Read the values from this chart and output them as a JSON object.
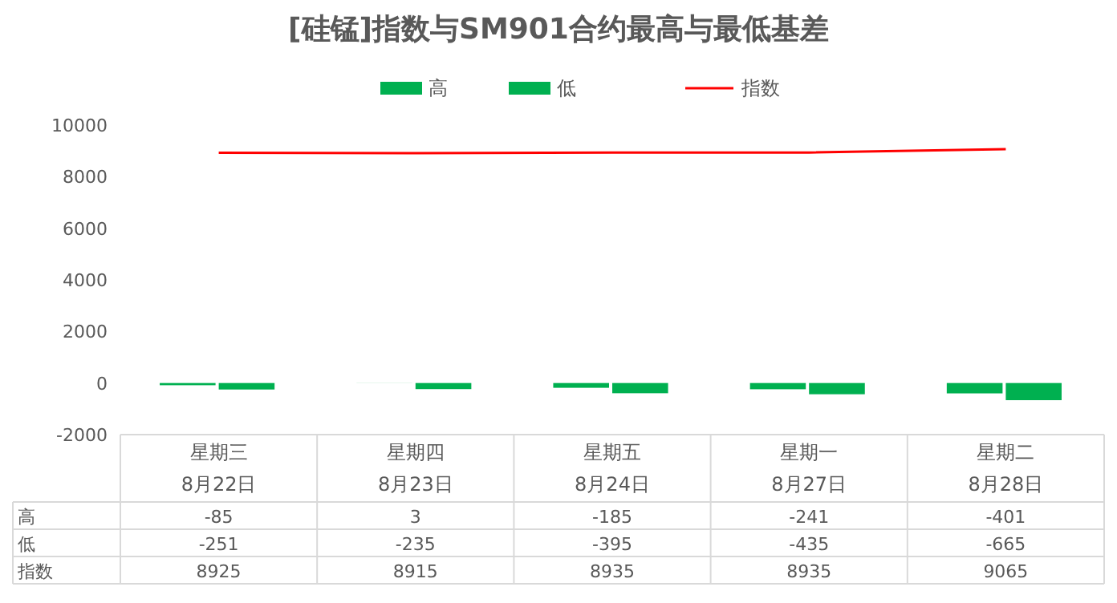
{
  "chart_data": {
    "type": "bar",
    "title": "[硅锰]指数与SM901合约最高与最低基差",
    "categories": [
      "星期三\n8月22日",
      "星期四\n8月23日",
      "星期五\n8月24日",
      "星期一\n8月27日",
      "星期二\n8月28日"
    ],
    "series": [
      {
        "name": "高",
        "color": "#00b050",
        "values": [
          -85,
          3,
          -185,
          -241,
          -401
        ]
      },
      {
        "name": "低",
        "color": "#00b050",
        "values": [
          -251,
          -235,
          -395,
          -435,
          -665
        ]
      },
      {
        "name": "指数",
        "type": "line",
        "color": "#ff0000",
        "values": [
          8925,
          8915,
          8935,
          8935,
          9065
        ]
      }
    ],
    "ylim": [
      -2000,
      10000
    ],
    "yticks": [
      -2000,
      0,
      2000,
      4000,
      6000,
      8000,
      10000
    ],
    "data_labels": true,
    "legend": "top",
    "marker": "none",
    "line_style": "solid"
  }
}
